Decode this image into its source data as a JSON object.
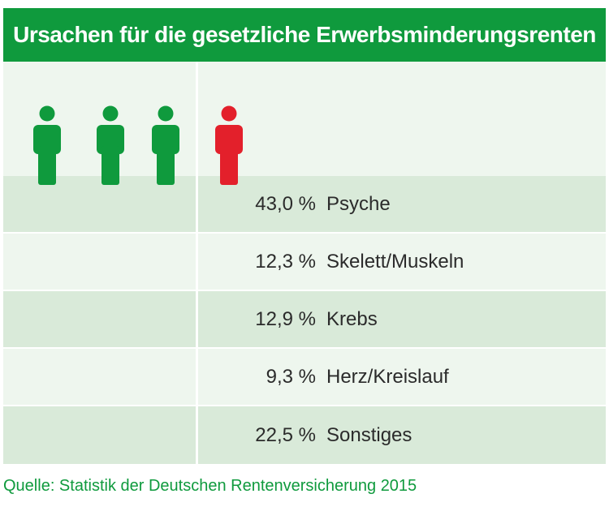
{
  "header": {
    "title": "Ursachen für die gesetzliche Erwerbsminderungsrenten"
  },
  "colors": {
    "header_bg": "#0f9a3d",
    "figure_green": "#0f9a3d",
    "figure_red": "#e3202b",
    "row_dark": "#d9ead9",
    "row_light": "#eef6ee",
    "source_text": "#0f9a3d"
  },
  "figures": [
    {
      "icon": "person-icon",
      "color": "green"
    },
    {
      "icon": "person-icon",
      "color": "green"
    },
    {
      "icon": "person-icon",
      "color": "green"
    },
    {
      "icon": "person-icon",
      "color": "red"
    }
  ],
  "chart_data": {
    "type": "table",
    "title": "Ursachen für die gesetzliche Erwerbsminderungsrenten",
    "rows": [
      {
        "value_label": "43,0 %",
        "category": "Psyche"
      },
      {
        "value_label": "12,3 %",
        "category": "Skelett/Muskeln"
      },
      {
        "value_label": "12,9 %",
        "category": "Krebs"
      },
      {
        "value_label": "9,3 %",
        "category": "Herz/Kreislauf"
      },
      {
        "value_label": "22,5 %",
        "category": "Sonstiges"
      }
    ],
    "values": [
      43.0,
      12.3,
      12.9,
      9.3,
      22.5
    ],
    "unit": "%"
  },
  "source": {
    "text": "Quelle: Statistik der Deutschen Rentenversicherung 2015"
  }
}
